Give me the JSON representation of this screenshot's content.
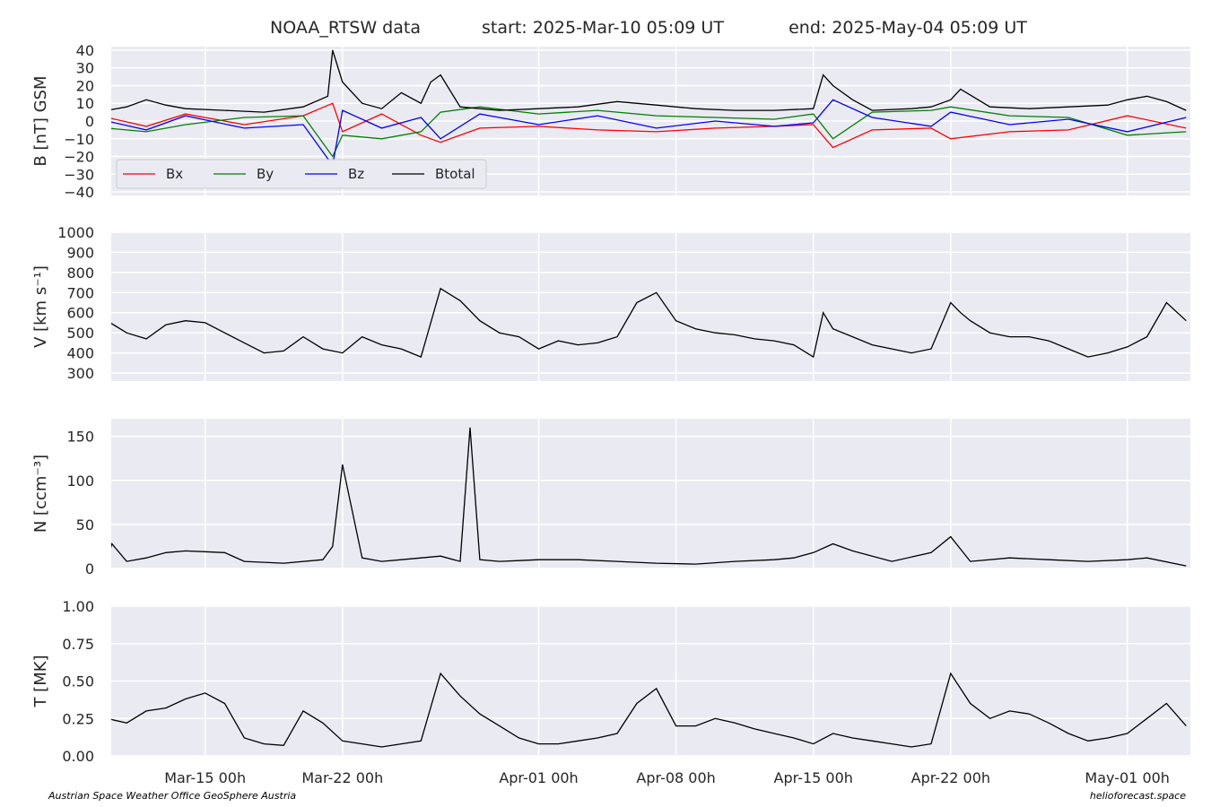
{
  "chart_data": {
    "type": "line",
    "title": {
      "source": "NOAA_RTSW data",
      "start": "start: 2025-Mar-10 05:09 UT",
      "end": "end: 2025-May-04 05:09 UT"
    },
    "x_range": [
      "2025-03-10 05:09",
      "2025-05-04 05:09"
    ],
    "x_ticks": [
      {
        "date": "2025-03-15 00:00",
        "label": "Mar-15 00h"
      },
      {
        "date": "2025-03-22 00:00",
        "label": "Mar-22 00h"
      },
      {
        "date": "2025-04-01 00:00",
        "label": "Apr-01 00h"
      },
      {
        "date": "2025-04-08 00:00",
        "label": "Apr-08 00h"
      },
      {
        "date": "2025-04-15 00:00",
        "label": "Apr-15 00h"
      },
      {
        "date": "2025-04-22 00:00",
        "label": "Apr-22 00h"
      },
      {
        "date": "2025-05-01 00:00",
        "label": "May-01 00h"
      }
    ],
    "grid": true,
    "panels": [
      {
        "id": "magnetic-field",
        "ylabel": "B [nT] GSM",
        "ylim": [
          -42,
          42
        ],
        "yticks": [
          {
            "v": 40,
            "l": "40"
          },
          {
            "v": 30,
            "l": "30"
          },
          {
            "v": 20,
            "l": "20"
          },
          {
            "v": 10,
            "l": "10"
          },
          {
            "v": 0,
            "l": "0"
          },
          {
            "v": -10,
            "l": "−10"
          },
          {
            "v": -20,
            "l": "−20"
          },
          {
            "v": -30,
            "l": "−30"
          },
          {
            "v": -40,
            "l": "−40"
          }
        ],
        "legend": {
          "position": "lower-left"
        },
        "series": [
          {
            "name": "Bx",
            "color": "#ff0000",
            "x": [
              "2025-03-10",
              "2025-03-12",
              "2025-03-14",
              "2025-03-17",
              "2025-03-20",
              "2025-03-21 12:00",
              "2025-03-22",
              "2025-03-24",
              "2025-03-26",
              "2025-03-27",
              "2025-03-29",
              "2025-04-01",
              "2025-04-04",
              "2025-04-07",
              "2025-04-10",
              "2025-04-13",
              "2025-04-15",
              "2025-04-16",
              "2025-04-18",
              "2025-04-21",
              "2025-04-22",
              "2025-04-25",
              "2025-04-28",
              "2025-05-01",
              "2025-05-04"
            ],
            "y": [
              2,
              -3,
              4,
              -2,
              3,
              10,
              -6,
              4,
              -8,
              -12,
              -4,
              -3,
              -5,
              -6,
              -4,
              -3,
              -2,
              -15,
              -5,
              -4,
              -10,
              -6,
              -5,
              3,
              -4
            ]
          },
          {
            "name": "By",
            "color": "#008000",
            "x": [
              "2025-03-10",
              "2025-03-12",
              "2025-03-14",
              "2025-03-17",
              "2025-03-20",
              "2025-03-21 12:00",
              "2025-03-22",
              "2025-03-24",
              "2025-03-26",
              "2025-03-27",
              "2025-03-29",
              "2025-04-01",
              "2025-04-04",
              "2025-04-07",
              "2025-04-10",
              "2025-04-13",
              "2025-04-15",
              "2025-04-16",
              "2025-04-18",
              "2025-04-21",
              "2025-04-22",
              "2025-04-25",
              "2025-04-28",
              "2025-05-01",
              "2025-05-04"
            ],
            "y": [
              -4,
              -6,
              -2,
              2,
              3,
              -20,
              -8,
              -10,
              -6,
              5,
              8,
              4,
              6,
              3,
              2,
              1,
              4,
              -10,
              5,
              6,
              8,
              3,
              2,
              -8,
              -6
            ]
          },
          {
            "name": "Bz",
            "color": "#0000ff",
            "x": [
              "2025-03-10",
              "2025-03-12",
              "2025-03-14",
              "2025-03-17",
              "2025-03-20",
              "2025-03-21 12:00",
              "2025-03-22",
              "2025-03-24",
              "2025-03-26",
              "2025-03-27",
              "2025-03-29",
              "2025-04-01",
              "2025-04-04",
              "2025-04-07",
              "2025-04-10",
              "2025-04-13",
              "2025-04-15",
              "2025-04-16",
              "2025-04-18",
              "2025-04-21",
              "2025-04-22",
              "2025-04-25",
              "2025-04-28",
              "2025-05-01",
              "2025-05-04"
            ],
            "y": [
              0,
              -5,
              3,
              -4,
              -2,
              -25,
              6,
              -4,
              2,
              -10,
              4,
              -2,
              3,
              -4,
              0,
              -3,
              -1,
              12,
              2,
              -3,
              5,
              -2,
              1,
              -6,
              2
            ]
          },
          {
            "name": "Btotal",
            "color": "#000000",
            "x": [
              "2025-03-10",
              "2025-03-11",
              "2025-03-12",
              "2025-03-13",
              "2025-03-14",
              "2025-03-16",
              "2025-03-18",
              "2025-03-20",
              "2025-03-21 06:00",
              "2025-03-21 12:00",
              "2025-03-22",
              "2025-03-23",
              "2025-03-24",
              "2025-03-25",
              "2025-03-26",
              "2025-03-26 12:00",
              "2025-03-27",
              "2025-03-28",
              "2025-03-30",
              "2025-04-01",
              "2025-04-03",
              "2025-04-05",
              "2025-04-07",
              "2025-04-09",
              "2025-04-11",
              "2025-04-13",
              "2025-04-15",
              "2025-04-15 12:00",
              "2025-04-16",
              "2025-04-17",
              "2025-04-18",
              "2025-04-20",
              "2025-04-21",
              "2025-04-22",
              "2025-04-22 12:00",
              "2025-04-24",
              "2025-04-26",
              "2025-04-28",
              "2025-04-30",
              "2025-05-01",
              "2025-05-02",
              "2025-05-03",
              "2025-05-04"
            ],
            "y": [
              6,
              8,
              12,
              9,
              7,
              6,
              5,
              8,
              14,
              40,
              22,
              10,
              7,
              16,
              10,
              22,
              26,
              8,
              6,
              7,
              8,
              11,
              9,
              7,
              6,
              6,
              7,
              26,
              20,
              12,
              6,
              7,
              8,
              12,
              18,
              8,
              7,
              8,
              9,
              12,
              14,
              11,
              6
            ]
          }
        ]
      },
      {
        "id": "speed",
        "ylabel": "V [km s⁻¹]",
        "ylim": [
          260,
          1000
        ],
        "yticks": [
          {
            "v": 1000,
            "l": "1000"
          },
          {
            "v": 900,
            "l": "900"
          },
          {
            "v": 800,
            "l": "800"
          },
          {
            "v": 700,
            "l": "700"
          },
          {
            "v": 600,
            "l": "600"
          },
          {
            "v": 500,
            "l": "500"
          },
          {
            "v": 400,
            "l": "400"
          },
          {
            "v": 300,
            "l": "300"
          }
        ],
        "series": [
          {
            "name": "",
            "color": "#000000",
            "x": [
              "2025-03-10",
              "2025-03-11",
              "2025-03-12",
              "2025-03-13",
              "2025-03-14",
              "2025-03-15",
              "2025-03-16",
              "2025-03-17",
              "2025-03-18",
              "2025-03-19",
              "2025-03-20",
              "2025-03-21",
              "2025-03-22",
              "2025-03-23",
              "2025-03-24",
              "2025-03-25",
              "2025-03-25 12:00",
              "2025-03-26",
              "2025-03-27",
              "2025-03-28",
              "2025-03-29",
              "2025-03-30",
              "2025-03-31",
              "2025-04-01",
              "2025-04-02",
              "2025-04-03",
              "2025-04-04",
              "2025-04-05",
              "2025-04-06",
              "2025-04-07",
              "2025-04-08",
              "2025-04-09",
              "2025-04-10",
              "2025-04-11",
              "2025-04-12",
              "2025-04-13",
              "2025-04-14",
              "2025-04-15",
              "2025-04-15 12:00",
              "2025-04-16",
              "2025-04-17",
              "2025-04-18",
              "2025-04-19",
              "2025-04-20",
              "2025-04-21",
              "2025-04-22",
              "2025-04-22 12:00",
              "2025-04-23",
              "2025-04-24",
              "2025-04-25",
              "2025-04-26",
              "2025-04-27",
              "2025-04-28",
              "2025-04-29",
              "2025-04-30",
              "2025-05-01",
              "2025-05-02",
              "2025-05-03",
              "2025-05-04"
            ],
            "y": [
              560,
              500,
              470,
              540,
              560,
              550,
              500,
              450,
              400,
              410,
              480,
              420,
              400,
              480,
              440,
              420,
              400,
              380,
              720,
              660,
              560,
              500,
              480,
              420,
              460,
              440,
              450,
              480,
              650,
              700,
              560,
              520,
              500,
              490,
              470,
              460,
              440,
              380,
              600,
              520,
              480,
              440,
              420,
              400,
              420,
              650,
              600,
              560,
              500,
              480,
              480,
              460,
              420,
              380,
              400,
              430,
              480,
              650,
              560
            ]
          }
        ]
      },
      {
        "id": "density",
        "ylabel": "N [ccm⁻³]",
        "ylim": [
          0,
          170
        ],
        "yticks": [
          {
            "v": 150,
            "l": "150"
          },
          {
            "v": 100,
            "l": "100"
          },
          {
            "v": 50,
            "l": "50"
          },
          {
            "v": 0,
            "l": "0"
          }
        ],
        "series": [
          {
            "name": "",
            "color": "#000000",
            "x": [
              "2025-03-10",
              "2025-03-10 06:00",
              "2025-03-11",
              "2025-03-12",
              "2025-03-13",
              "2025-03-14",
              "2025-03-15",
              "2025-03-16",
              "2025-03-17",
              "2025-03-19",
              "2025-03-21",
              "2025-03-21 12:00",
              "2025-03-22",
              "2025-03-23",
              "2025-03-24",
              "2025-03-25",
              "2025-03-26",
              "2025-03-27",
              "2025-03-28",
              "2025-03-28 12:00",
              "2025-03-29",
              "2025-03-30",
              "2025-03-31",
              "2025-04-01",
              "2025-04-03",
              "2025-04-05",
              "2025-04-07",
              "2025-04-09",
              "2025-04-11",
              "2025-04-13",
              "2025-04-14",
              "2025-04-15",
              "2025-04-16",
              "2025-04-17",
              "2025-04-19",
              "2025-04-21",
              "2025-04-22",
              "2025-04-23",
              "2025-04-25",
              "2025-04-27",
              "2025-04-29",
              "2025-05-01",
              "2025-05-02",
              "2025-05-04"
            ],
            "y": [
              10,
              28,
              8,
              12,
              18,
              20,
              19,
              18,
              8,
              6,
              10,
              25,
              118,
              12,
              8,
              10,
              12,
              14,
              8,
              160,
              10,
              8,
              9,
              10,
              10,
              8,
              6,
              5,
              8,
              10,
              12,
              18,
              28,
              20,
              8,
              18,
              36,
              8,
              12,
              10,
              8,
              10,
              12,
              3
            ]
          }
        ]
      },
      {
        "id": "temperature",
        "ylabel": "T [MK]",
        "ylim": [
          0,
          1
        ],
        "yticks": [
          {
            "v": 1,
            "l": "1.00"
          },
          {
            "v": 0.75,
            "l": "0.75"
          },
          {
            "v": 0.5,
            "l": "0.50"
          },
          {
            "v": 0.25,
            "l": "0.25"
          },
          {
            "v": 0,
            "l": "0.00"
          }
        ],
        "series": [
          {
            "name": "",
            "color": "#000000",
            "x": [
              "2025-03-10",
              "2025-03-11",
              "2025-03-12",
              "2025-03-13",
              "2025-03-14",
              "2025-03-15",
              "2025-03-16",
              "2025-03-17",
              "2025-03-18",
              "2025-03-19",
              "2025-03-20",
              "2025-03-21",
              "2025-03-22",
              "2025-03-23",
              "2025-03-24",
              "2025-03-25",
              "2025-03-26",
              "2025-03-27",
              "2025-03-28",
              "2025-03-29",
              "2025-03-30",
              "2025-03-31",
              "2025-04-01",
              "2025-04-02",
              "2025-04-03",
              "2025-04-04",
              "2025-04-05",
              "2025-04-06",
              "2025-04-07",
              "2025-04-08",
              "2025-04-09",
              "2025-04-10",
              "2025-04-11",
              "2025-04-12",
              "2025-04-13",
              "2025-04-14",
              "2025-04-15",
              "2025-04-16",
              "2025-04-17",
              "2025-04-18",
              "2025-04-19",
              "2025-04-20",
              "2025-04-21",
              "2025-04-22",
              "2025-04-23",
              "2025-04-24",
              "2025-04-25",
              "2025-04-26",
              "2025-04-27",
              "2025-04-28",
              "2025-04-29",
              "2025-04-30",
              "2025-05-01",
              "2025-05-02",
              "2025-05-03",
              "2025-05-04"
            ],
            "y": [
              0.25,
              0.22,
              0.3,
              0.32,
              0.38,
              0.42,
              0.35,
              0.12,
              0.08,
              0.07,
              0.3,
              0.22,
              0.1,
              0.08,
              0.06,
              0.08,
              0.1,
              0.55,
              0.4,
              0.28,
              0.2,
              0.12,
              0.08,
              0.08,
              0.1,
              0.12,
              0.15,
              0.35,
              0.45,
              0.2,
              0.2,
              0.25,
              0.22,
              0.18,
              0.15,
              0.12,
              0.08,
              0.15,
              0.12,
              0.1,
              0.08,
              0.06,
              0.08,
              0.55,
              0.35,
              0.25,
              0.3,
              0.28,
              0.22,
              0.15,
              0.1,
              0.12,
              0.15,
              0.25,
              0.35,
              0.2
            ]
          }
        ]
      }
    ],
    "credits": {
      "left": "Austrian Space Weather Office   GeoSphere Austria",
      "right": "helioforecast.space"
    }
  }
}
